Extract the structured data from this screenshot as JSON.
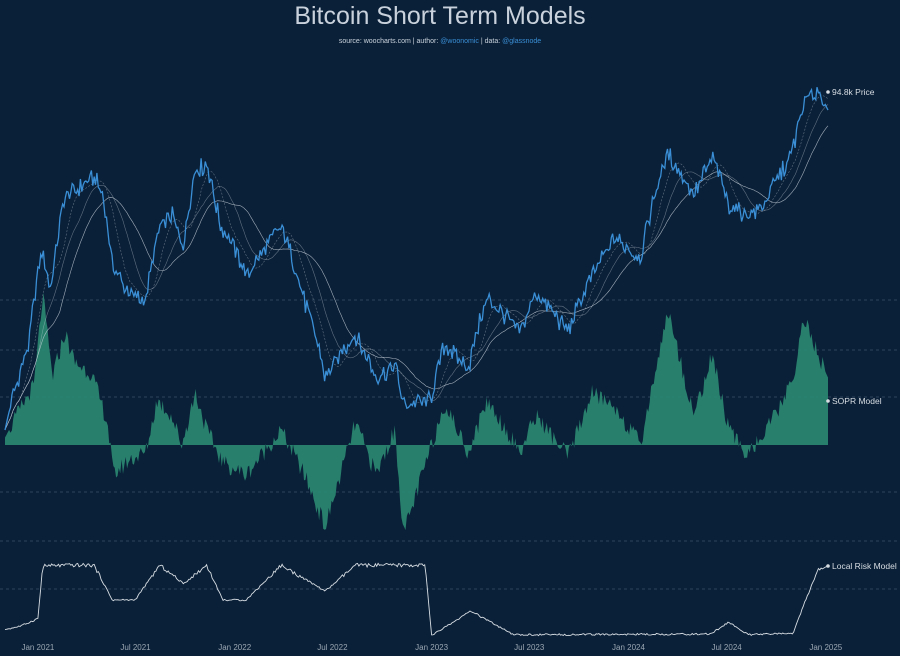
{
  "chart_data": {
    "type": "line",
    "title": "Bitcoin Short Term Models",
    "subtitle": {
      "source_prefix": "source:",
      "source": "woocharts.com",
      "author_prefix": "| author:",
      "author": "@woonomic",
      "data_prefix": "| data:",
      "data": "@glassnode"
    },
    "x_ticks": [
      "Jan 2021",
      "Jul 2021",
      "Jan 2022",
      "Jul 2022",
      "Jan 2023",
      "Jul 2023",
      "Jan 2024",
      "Jul 2024",
      "Jan 2025"
    ],
    "grid": "dashed horizontal",
    "colors": {
      "background": "#0a2038",
      "price": "#3a8fd6",
      "moving_averages": "#c9d2dc",
      "sopr_fill": "#2a8a72",
      "risk_line": "#d7dde3",
      "grid": "#3d5268"
    },
    "series": [
      {
        "name": "Price",
        "label": "94.8k Price",
        "points": [
          [
            "2020-11-01",
            13800
          ],
          [
            "2020-12-15",
            23000
          ],
          [
            "2021-01-08",
            40000
          ],
          [
            "2021-01-25",
            32000
          ],
          [
            "2021-02-20",
            57000
          ],
          [
            "2021-03-15",
            58500
          ],
          [
            "2021-04-14",
            63500
          ],
          [
            "2021-05-01",
            57000
          ],
          [
            "2021-05-19",
            37000
          ],
          [
            "2021-06-22",
            31000
          ],
          [
            "2021-07-20",
            30000
          ],
          [
            "2021-08-15",
            47000
          ],
          [
            "2021-09-07",
            50000
          ],
          [
            "2021-09-28",
            42000
          ],
          [
            "2021-10-20",
            66000
          ],
          [
            "2021-11-10",
            68500
          ],
          [
            "2021-12-04",
            48000
          ],
          [
            "2022-01-24",
            35000
          ],
          [
            "2022-03-28",
            47000
          ],
          [
            "2022-05-10",
            30000
          ],
          [
            "2022-06-18",
            19000
          ],
          [
            "2022-08-13",
            24500
          ],
          [
            "2022-09-20",
            19000
          ],
          [
            "2022-10-25",
            20300
          ],
          [
            "2022-11-10",
            16000
          ],
          [
            "2022-12-30",
            16500
          ],
          [
            "2023-01-25",
            23000
          ],
          [
            "2023-03-10",
            20000
          ],
          [
            "2023-04-14",
            30500
          ],
          [
            "2023-06-15",
            25000
          ],
          [
            "2023-07-13",
            31500
          ],
          [
            "2023-09-11",
            25000
          ],
          [
            "2023-10-24",
            34500
          ],
          [
            "2023-12-08",
            44000
          ],
          [
            "2024-01-23",
            39000
          ],
          [
            "2024-03-14",
            73000
          ],
          [
            "2024-05-01",
            57000
          ],
          [
            "2024-06-05",
            71000
          ],
          [
            "2024-07-05",
            54000
          ],
          [
            "2024-08-05",
            50000
          ],
          [
            "2024-09-06",
            53000
          ],
          [
            "2024-10-29",
            72000
          ],
          [
            "2024-11-22",
            99000
          ],
          [
            "2024-12-17",
            107000
          ],
          [
            "2025-01-05",
            94800
          ]
        ]
      },
      {
        "name": "SOPR Model",
        "label": "SOPR Model",
        "points": [
          [
            "2020-11-01",
            0.05
          ],
          [
            "2020-12-01",
            0.25
          ],
          [
            "2020-12-25",
            0.4
          ],
          [
            "2021-01-10",
            1.0
          ],
          [
            "2021-01-28",
            0.45
          ],
          [
            "2021-02-20",
            0.75
          ],
          [
            "2021-03-10",
            0.55
          ],
          [
            "2021-04-10",
            0.48
          ],
          [
            "2021-05-10",
            0.15
          ],
          [
            "2021-05-21",
            -0.2
          ],
          [
            "2021-06-20",
            -0.1
          ],
          [
            "2021-07-20",
            -0.05
          ],
          [
            "2021-08-10",
            0.3
          ],
          [
            "2021-09-05",
            0.2
          ],
          [
            "2021-09-25",
            0.0
          ],
          [
            "2021-10-20",
            0.35
          ],
          [
            "2021-11-10",
            0.1
          ],
          [
            "2021-12-10",
            -0.12
          ],
          [
            "2022-01-22",
            -0.2
          ],
          [
            "2022-03-28",
            0.1
          ],
          [
            "2022-05-10",
            -0.2
          ],
          [
            "2022-06-18",
            -0.55
          ],
          [
            "2022-08-13",
            0.15
          ],
          [
            "2022-09-20",
            -0.2
          ],
          [
            "2022-10-25",
            0.1
          ],
          [
            "2022-11-10",
            -0.6
          ],
          [
            "2023-01-01",
            0.0
          ],
          [
            "2023-01-25",
            0.28
          ],
          [
            "2023-03-10",
            -0.05
          ],
          [
            "2023-04-14",
            0.3
          ],
          [
            "2023-06-15",
            -0.05
          ],
          [
            "2023-07-13",
            0.2
          ],
          [
            "2023-09-11",
            -0.08
          ],
          [
            "2023-10-25",
            0.35
          ],
          [
            "2023-12-08",
            0.25
          ],
          [
            "2024-01-23",
            0.0
          ],
          [
            "2024-03-14",
            0.9
          ],
          [
            "2024-05-01",
            0.2
          ],
          [
            "2024-06-05",
            0.6
          ],
          [
            "2024-07-05",
            0.1
          ],
          [
            "2024-08-05",
            -0.05
          ],
          [
            "2024-09-06",
            0.05
          ],
          [
            "2024-10-29",
            0.4
          ],
          [
            "2024-11-22",
            0.85
          ],
          [
            "2024-12-17",
            0.6
          ],
          [
            "2025-01-05",
            0.45
          ]
        ]
      },
      {
        "name": "Local Risk Model",
        "label": "Local Risk Model",
        "points": [
          [
            "2020-11-01",
            0.1
          ],
          [
            "2020-12-01",
            0.15
          ],
          [
            "2021-01-01",
            0.25
          ],
          [
            "2021-01-10",
            0.96
          ],
          [
            "2021-03-01",
            0.97
          ],
          [
            "2021-04-15",
            0.97
          ],
          [
            "2021-05-19",
            0.5
          ],
          [
            "2021-06-30",
            0.5
          ],
          [
            "2021-08-15",
            0.97
          ],
          [
            "2021-09-28",
            0.72
          ],
          [
            "2021-11-10",
            0.97
          ],
          [
            "2021-12-10",
            0.5
          ],
          [
            "2022-01-22",
            0.5
          ],
          [
            "2022-03-28",
            0.97
          ],
          [
            "2022-06-18",
            0.62
          ],
          [
            "2022-08-13",
            0.97
          ],
          [
            "2022-11-10",
            0.97
          ],
          [
            "2022-12-20",
            0.97
          ],
          [
            "2023-01-01",
            0.02
          ],
          [
            "2023-03-15",
            0.35
          ],
          [
            "2023-06-01",
            0.03
          ],
          [
            "2024-06-01",
            0.04
          ],
          [
            "2024-07-05",
            0.2
          ],
          [
            "2024-08-10",
            0.03
          ],
          [
            "2024-11-01",
            0.05
          ],
          [
            "2024-11-22",
            0.45
          ],
          [
            "2024-12-17",
            0.9
          ],
          [
            "2025-01-05",
            0.96
          ]
        ]
      }
    ]
  }
}
